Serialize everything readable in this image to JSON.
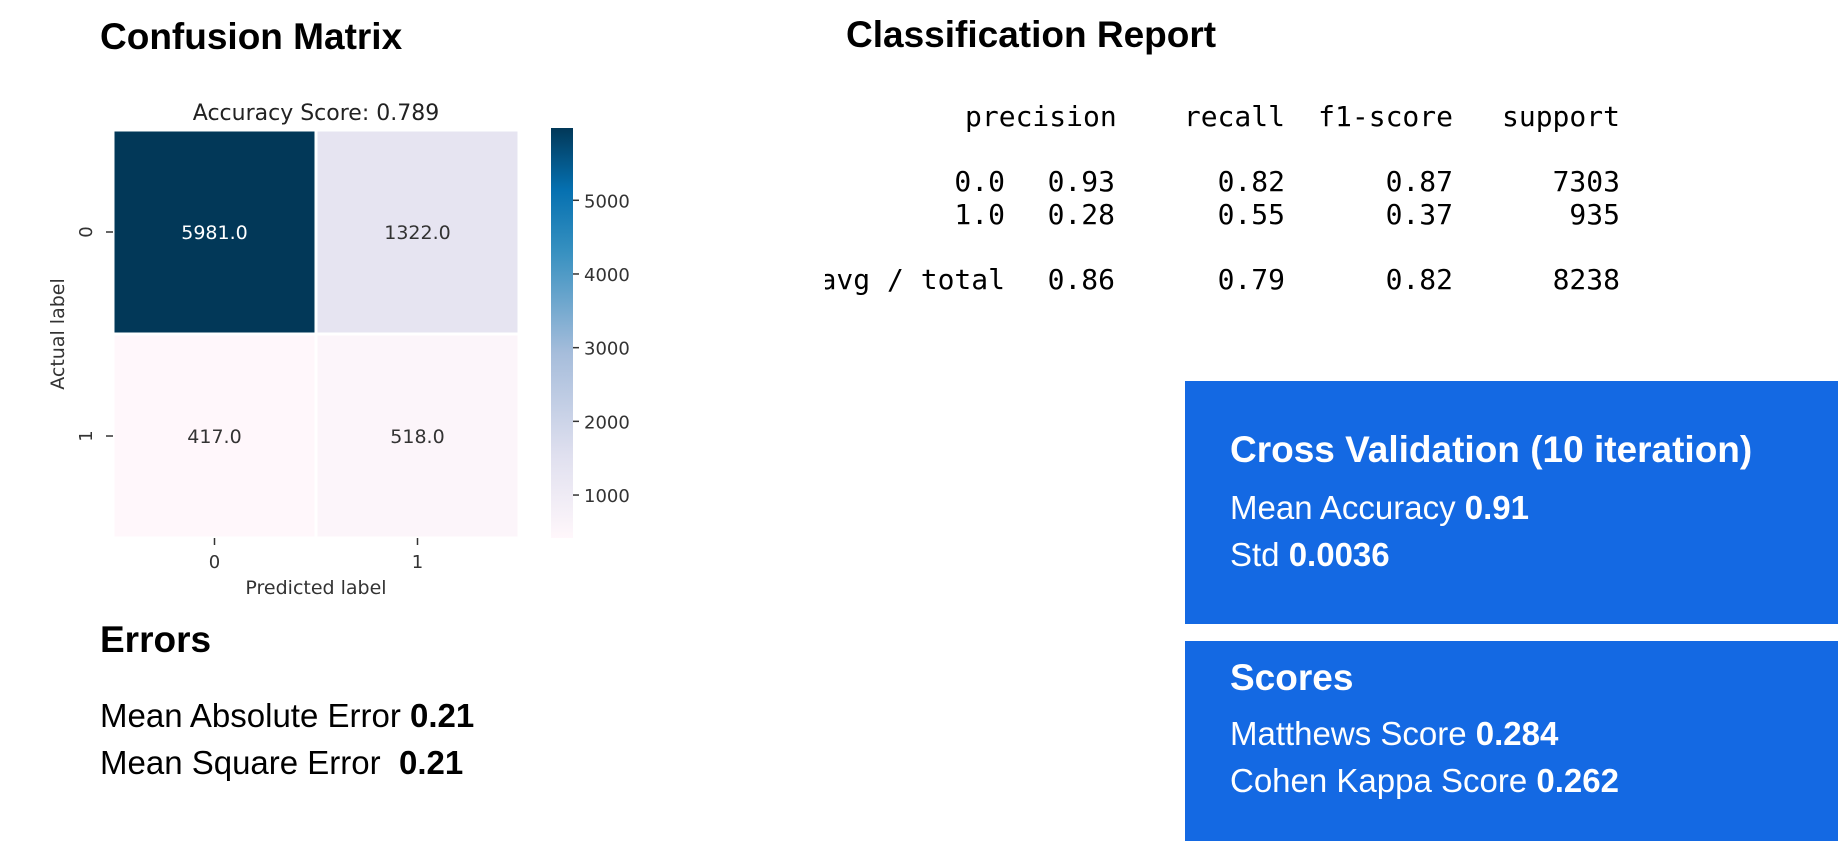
{
  "confusion": {
    "heading": "Confusion Matrix",
    "chart_data": {
      "type": "heatmap",
      "title": "Accuracy Score: 0.789",
      "xlabel": "Predicted label",
      "ylabel": "Actual label",
      "x_categories": [
        "0",
        "1"
      ],
      "y_categories": [
        "0",
        "1"
      ],
      "values": [
        [
          5981.0,
          1322.0
        ],
        [
          417.0,
          518.0
        ]
      ],
      "cell_labels": [
        [
          "5981.0",
          "1322.0"
        ],
        [
          "417.0",
          "518.0"
        ]
      ],
      "colorbar": {
        "min": 417,
        "max": 5981,
        "ticks": [
          1000,
          2000,
          3000,
          4000,
          5000
        ]
      },
      "colormap": [
        "#fff7fb",
        "#e0e0ef",
        "#a6bddb",
        "#3690c0",
        "#0570b0",
        "#023858"
      ]
    }
  },
  "report": {
    "heading": "Classification Report",
    "columns": [
      "precision",
      "recall",
      "f1-score",
      "support"
    ],
    "rows": [
      {
        "label": "0.0",
        "values": [
          "0.93",
          "0.82",
          "0.87",
          "7303"
        ]
      },
      {
        "label": "1.0",
        "values": [
          "0.28",
          "0.55",
          "0.37",
          "935"
        ]
      },
      {
        "label": "avg / total",
        "values": [
          "0.86",
          "0.79",
          "0.82",
          "8238"
        ]
      }
    ]
  },
  "errors": {
    "heading": "Errors",
    "mae_label": "Mean Absolute Error ",
    "mae_value": "0.21",
    "mse_label": "Mean Square Error  ",
    "mse_value": "0.21"
  },
  "cross_validation": {
    "title": "Cross Validation (10 iteration)",
    "mean_label": "Mean Accuracy ",
    "mean_value": "0.91",
    "std_label": "Std ",
    "std_value": "0.0036"
  },
  "scores": {
    "title": "Scores",
    "matthews_label": "Matthews Score ",
    "matthews_value": "0.284",
    "cohen_label": "Cohen Kappa Score ",
    "cohen_value": "0.262"
  },
  "colors": {
    "accent_box": "#1469e3"
  }
}
